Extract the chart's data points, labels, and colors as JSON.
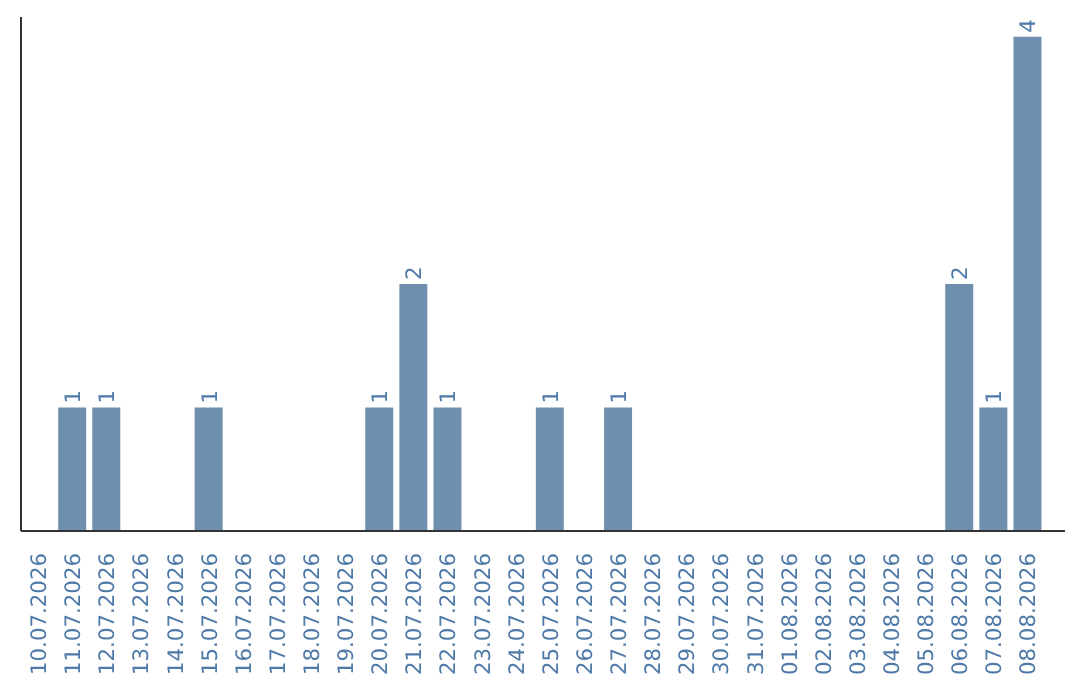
{
  "chart_data": {
    "type": "bar",
    "categories": [
      "10.07.2026",
      "11.07.2026",
      "12.07.2026",
      "13.07.2026",
      "14.07.2026",
      "15.07.2026",
      "16.07.2026",
      "17.07.2026",
      "18.07.2026",
      "19.07.2026",
      "20.07.2026",
      "21.07.2026",
      "22.07.2026",
      "23.07.2026",
      "24.07.2026",
      "25.07.2026",
      "26.07.2026",
      "27.07.2026",
      "28.07.2026",
      "29.07.2026",
      "30.07.2026",
      "31.07.2026",
      "01.08.2026",
      "02.08.2026",
      "03.08.2026",
      "04.08.2026",
      "05.08.2026",
      "06.08.2026",
      "07.08.2026",
      "08.08.2026"
    ],
    "values": [
      0,
      1,
      1,
      0,
      0,
      1,
      0,
      0,
      0,
      0,
      1,
      2,
      1,
      0,
      0,
      1,
      0,
      1,
      0,
      0,
      0,
      0,
      0,
      0,
      0,
      0,
      0,
      2,
      1,
      4
    ],
    "value_labels": [
      null,
      "1",
      "1",
      null,
      null,
      "1",
      null,
      null,
      null,
      null,
      "1",
      "2",
      "1",
      null,
      null,
      "1",
      null,
      "1",
      null,
      null,
      null,
      null,
      null,
      null,
      null,
      null,
      null,
      "2",
      "1",
      "4"
    ],
    "color": "#6f8fae",
    "grid": false
  }
}
